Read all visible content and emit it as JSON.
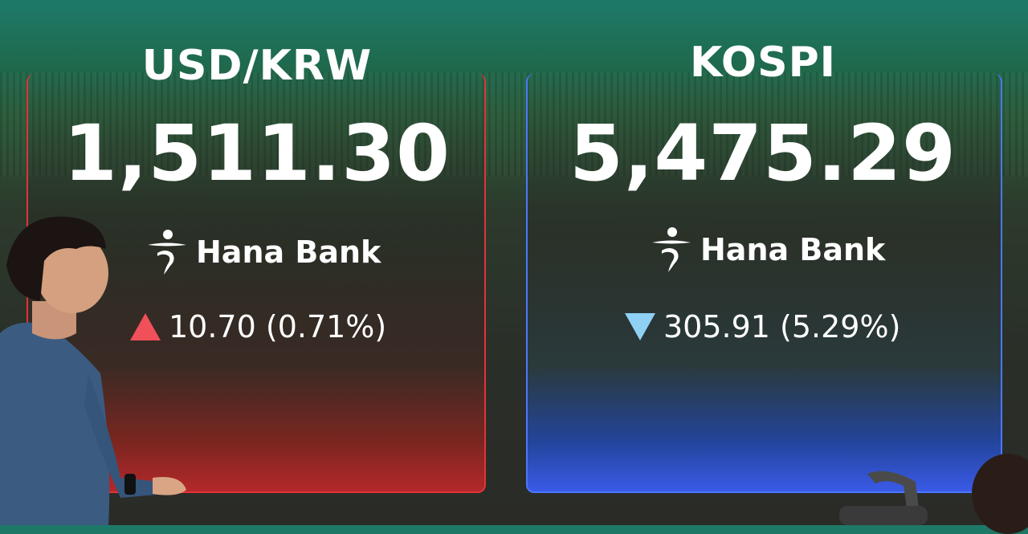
{
  "boards": [
    {
      "title": "USD/KRW",
      "value": "1,511.30",
      "brand": "Hana Bank",
      "direction": "up",
      "change": "10.70 (0.71%)",
      "accent": "#e0343a"
    },
    {
      "title": "KOSPI",
      "value": "5,475.29",
      "brand": "Hana Bank",
      "direction": "down",
      "change": "305.91 (5.29%)",
      "accent": "#4a78ff"
    }
  ],
  "icons": {
    "up": "triangle-up-icon",
    "down": "triangle-down-icon",
    "logo": "hana-bank-logo"
  }
}
